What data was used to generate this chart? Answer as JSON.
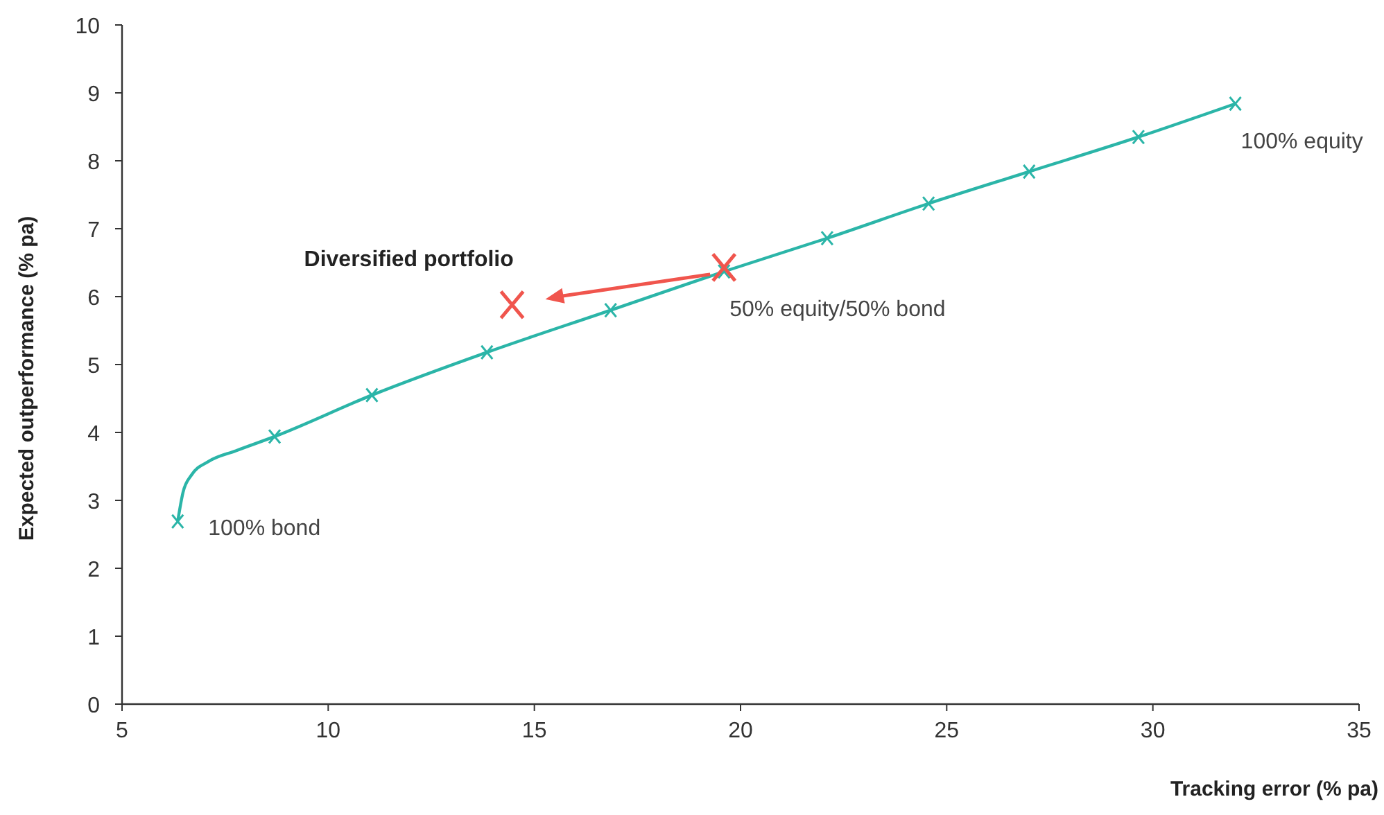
{
  "chart_data": {
    "type": "line",
    "xlabel": "Tracking error (% pa)",
    "ylabel": "Expected outperformance (% pa)",
    "xlim": [
      5,
      35
    ],
    "xticks": [
      5,
      10,
      15,
      20,
      25,
      30,
      35
    ],
    "ylim": [
      0,
      10
    ],
    "yticks": [
      0,
      1,
      2,
      3,
      4,
      5,
      6,
      7,
      8,
      9,
      10
    ],
    "grid": false,
    "series": [
      {
        "color": "#2bb5a8",
        "marker": "none",
        "x": [
          6.35,
          6.48,
          6.68,
          7.09,
          7.76,
          8.7,
          11.06,
          13.85,
          16.85,
          19.6,
          22.1,
          24.56,
          27.0,
          29.65,
          32.0
        ],
        "values": [
          2.69,
          3.12,
          3.37,
          3.57,
          3.73,
          3.94,
          4.55,
          5.18,
          5.8,
          6.37,
          6.86,
          7.37,
          7.84,
          8.35,
          8.84
        ]
      },
      {
        "type": "scatter",
        "color": "#2bb5a8",
        "marker": "cross",
        "x": [
          6.35,
          8.7,
          11.06,
          13.85,
          16.85,
          19.6,
          22.1,
          24.56,
          27.0,
          29.65,
          32.0
        ],
        "values": [
          2.69,
          3.94,
          4.55,
          5.18,
          5.8,
          6.37,
          6.86,
          7.37,
          7.84,
          8.35,
          8.84
        ]
      },
      {
        "type": "scatter",
        "color": "#f0554d",
        "marker": "cross",
        "x": [
          14.46,
          19.6
        ],
        "values": [
          5.88,
          6.43
        ]
      }
    ],
    "annotations": [
      {
        "text": "Diversified portfolio",
        "x": 14.46,
        "y": 5.88
      },
      {
        "text": "50% equity/50% bond",
        "x": 19.6,
        "y": 6.37
      },
      {
        "text": "100% equity",
        "x": 32.0,
        "y": 8.84
      },
      {
        "text": "100% bond",
        "x": 6.35,
        "y": 2.69
      }
    ]
  }
}
